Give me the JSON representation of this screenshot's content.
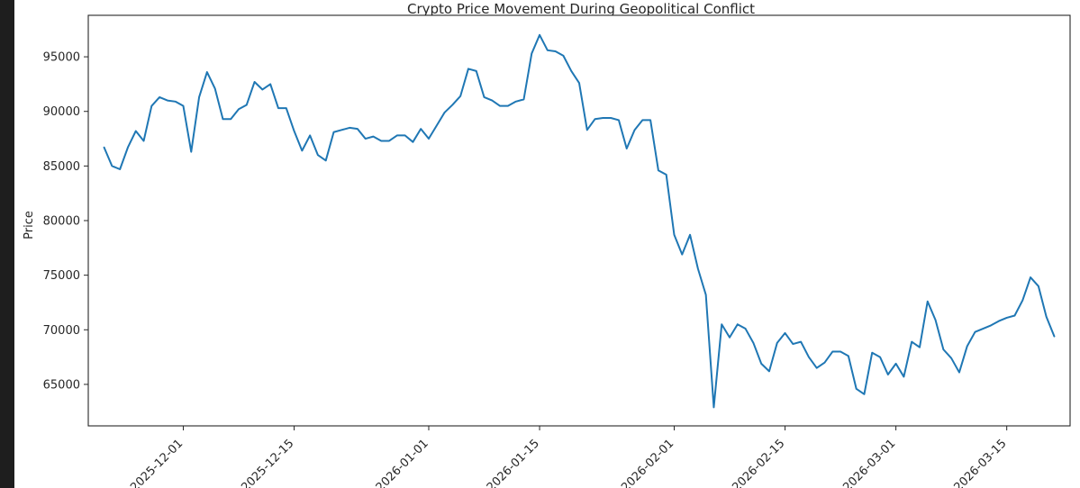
{
  "chart_data": {
    "type": "line",
    "title": "Crypto Price Movement During Geopolitical Conflict",
    "xlabel": "",
    "ylabel": "Price",
    "xlim": [
      "2025-11-19",
      "2026-03-23"
    ],
    "ylim": [
      61200,
      98800
    ],
    "yticks": [
      65000,
      70000,
      75000,
      80000,
      85000,
      90000,
      95000
    ],
    "xticks": [
      "2025-12-01",
      "2025-12-15",
      "2026-01-01",
      "2026-01-15",
      "2026-02-01",
      "2026-02-15",
      "2026-03-01",
      "2026-03-15"
    ],
    "grid": false,
    "series": [
      {
        "color": "#1f77b4",
        "start_date": "2025-11-21",
        "values": [
          86700,
          85000,
          84700,
          86700,
          88200,
          87300,
          90500,
          91300,
          91000,
          90900,
          90500,
          86300,
          91300,
          93600,
          92100,
          89300,
          89300,
          90200,
          90600,
          92700,
          92000,
          92500,
          90300,
          90300,
          88200,
          86400,
          87800,
          86000,
          85500,
          88100,
          88300,
          88500,
          88400,
          87500,
          87700,
          87300,
          87300,
          87800,
          87800,
          87200,
          88400,
          87500,
          88700,
          89900,
          90600,
          91400,
          93900,
          93700,
          91300,
          91000,
          90500,
          90500,
          90900,
          91100,
          95300,
          97000,
          95600,
          95500,
          95100,
          93700,
          92600,
          88300,
          89300,
          89400,
          89400,
          89200,
          86600,
          88300,
          89200,
          89200,
          84600,
          84200,
          78700,
          76900,
          78700,
          75600,
          73200,
          62900,
          70500,
          69300,
          70500,
          70100,
          68800,
          66900,
          66200,
          68800,
          69700,
          68700,
          68900,
          67500,
          66500,
          67000,
          68000,
          68000,
          67600,
          64600,
          64100,
          67900,
          67500,
          65900,
          66900,
          65700,
          68900,
          68400,
          72600,
          70900,
          68200,
          67400,
          66100,
          68500,
          69800,
          70100,
          70400,
          70800,
          71100,
          71300,
          72700,
          74800,
          74000,
          71200,
          69400
        ]
      }
    ]
  }
}
